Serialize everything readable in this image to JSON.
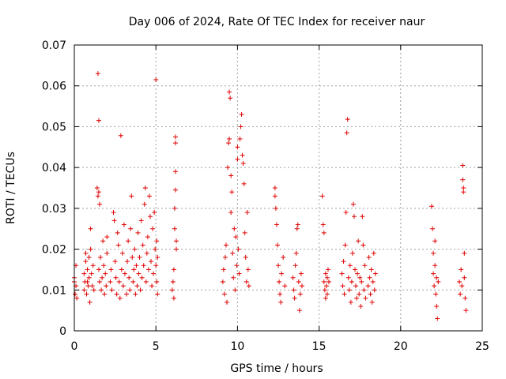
{
  "chart_data": {
    "type": "scatter",
    "title": "Day 006 of 2024, Rate Of TEC Index for receiver naur",
    "xlabel": "GPS time / hours",
    "ylabel": "ROTI / TECUs",
    "xlim": [
      0,
      25
    ],
    "ylim": [
      0,
      0.07
    ],
    "x_ticks": [
      0,
      5,
      10,
      15,
      20,
      25
    ],
    "x_tick_labels": [
      "0",
      "5",
      "10",
      "15",
      "20",
      "25"
    ],
    "y_ticks": [
      0,
      0.01,
      0.02,
      0.03,
      0.04,
      0.05,
      0.06,
      0.07
    ],
    "y_tick_labels": [
      "0",
      "0.01",
      "0.02",
      "0.03",
      "0.04",
      "0.05",
      "0.06",
      "0.07"
    ],
    "grid": true,
    "marker": "plus",
    "color": "#e00000",
    "series": [
      {
        "name": "ROTI",
        "points": [
          [
            0.0,
            0.012
          ],
          [
            0.0,
            0.013
          ],
          [
            0.05,
            0.009
          ],
          [
            0.1,
            0.011
          ],
          [
            0.1,
            0.016
          ],
          [
            0.15,
            0.008
          ],
          [
            0.6,
            0.01
          ],
          [
            0.6,
            0.014
          ],
          [
            0.65,
            0.012
          ],
          [
            0.7,
            0.017
          ],
          [
            0.7,
            0.019
          ],
          [
            0.75,
            0.009
          ],
          [
            0.8,
            0.012
          ],
          [
            0.8,
            0.015
          ],
          [
            0.85,
            0.011
          ],
          [
            0.9,
            0.013
          ],
          [
            0.9,
            0.018
          ],
          [
            0.95,
            0.007
          ],
          [
            1.0,
            0.025
          ],
          [
            1.0,
            0.02
          ],
          [
            1.05,
            0.014
          ],
          [
            1.1,
            0.011
          ],
          [
            1.15,
            0.016
          ],
          [
            1.2,
            0.01
          ],
          [
            1.45,
            0.063
          ],
          [
            1.5,
            0.0515
          ],
          [
            1.4,
            0.035
          ],
          [
            1.45,
            0.033
          ],
          [
            1.5,
            0.034
          ],
          [
            1.55,
            0.031
          ],
          [
            1.5,
            0.015
          ],
          [
            1.55,
            0.012
          ],
          [
            1.6,
            0.018
          ],
          [
            1.65,
            0.01
          ],
          [
            1.7,
            0.013
          ],
          [
            1.75,
            0.022
          ],
          [
            1.8,
            0.016
          ],
          [
            1.85,
            0.009
          ],
          [
            1.9,
            0.014
          ],
          [
            1.95,
            0.011
          ],
          [
            2.0,
            0.019
          ],
          [
            2.0,
            0.023
          ],
          [
            2.2,
            0.012
          ],
          [
            2.25,
            0.015
          ],
          [
            2.3,
            0.01
          ],
          [
            2.4,
            0.029
          ],
          [
            2.45,
            0.027
          ],
          [
            2.5,
            0.017
          ],
          [
            2.55,
            0.013
          ],
          [
            2.6,
            0.009
          ],
          [
            2.65,
            0.024
          ],
          [
            2.7,
            0.021
          ],
          [
            2.75,
            0.012
          ],
          [
            2.8,
            0.008
          ],
          [
            2.85,
            0.0478
          ],
          [
            2.9,
            0.015
          ],
          [
            2.95,
            0.019
          ],
          [
            3.0,
            0.011
          ],
          [
            3.05,
            0.026
          ],
          [
            3.1,
            0.014
          ],
          [
            3.2,
            0.009
          ],
          [
            3.25,
            0.017
          ],
          [
            3.3,
            0.022
          ],
          [
            3.35,
            0.013
          ],
          [
            3.4,
            0.01
          ],
          [
            3.45,
            0.025
          ],
          [
            3.5,
            0.033
          ],
          [
            3.55,
            0.018
          ],
          [
            3.6,
            0.012
          ],
          [
            3.65,
            0.015
          ],
          [
            3.7,
            0.02
          ],
          [
            3.75,
            0.009
          ],
          [
            3.8,
            0.016
          ],
          [
            3.85,
            0.011
          ],
          [
            3.9,
            0.024
          ],
          [
            3.95,
            0.014
          ],
          [
            4.0,
            0.018
          ],
          [
            4.05,
            0.01
          ],
          [
            4.1,
            0.027
          ],
          [
            4.15,
            0.013
          ],
          [
            4.2,
            0.021
          ],
          [
            4.25,
            0.016
          ],
          [
            4.3,
            0.031
          ],
          [
            4.35,
            0.035
          ],
          [
            4.4,
            0.012
          ],
          [
            4.45,
            0.019
          ],
          [
            4.5,
            0.023
          ],
          [
            4.55,
            0.015
          ],
          [
            4.6,
            0.033
          ],
          [
            4.65,
            0.028
          ],
          [
            4.7,
            0.017
          ],
          [
            4.75,
            0.011
          ],
          [
            4.8,
            0.025
          ],
          [
            4.85,
            0.014
          ],
          [
            4.9,
            0.029
          ],
          [
            4.95,
            0.02
          ],
          [
            5.0,
            0.0615
          ],
          [
            5.0,
            0.016
          ],
          [
            5.05,
            0.012
          ],
          [
            5.05,
            0.022
          ],
          [
            5.1,
            0.009
          ],
          [
            5.1,
            0.018
          ],
          [
            6.0,
            0.01
          ],
          [
            6.05,
            0.012
          ],
          [
            6.1,
            0.008
          ],
          [
            6.1,
            0.015
          ],
          [
            6.15,
            0.025
          ],
          [
            6.15,
            0.03
          ],
          [
            6.2,
            0.0475
          ],
          [
            6.2,
            0.046
          ],
          [
            6.2,
            0.039
          ],
          [
            6.2,
            0.0345
          ],
          [
            6.25,
            0.02
          ],
          [
            6.25,
            0.022
          ],
          [
            9.1,
            0.012
          ],
          [
            9.15,
            0.015
          ],
          [
            9.2,
            0.009
          ],
          [
            9.25,
            0.018
          ],
          [
            9.3,
            0.021
          ],
          [
            9.35,
            0.007
          ],
          [
            9.4,
            0.04
          ],
          [
            9.45,
            0.046
          ],
          [
            9.5,
            0.047
          ],
          [
            9.5,
            0.0585
          ],
          [
            9.55,
            0.057
          ],
          [
            9.6,
            0.038
          ],
          [
            9.6,
            0.029
          ],
          [
            9.65,
            0.034
          ],
          [
            9.7,
            0.019
          ],
          [
            9.75,
            0.013
          ],
          [
            9.8,
            0.025
          ],
          [
            9.85,
            0.01
          ],
          [
            9.9,
            0.023
          ],
          [
            9.95,
            0.016
          ],
          [
            10.0,
            0.045
          ],
          [
            10.0,
            0.042
          ],
          [
            10.05,
            0.02
          ],
          [
            10.1,
            0.014
          ],
          [
            10.15,
            0.047
          ],
          [
            10.2,
            0.05
          ],
          [
            10.25,
            0.053
          ],
          [
            10.3,
            0.043
          ],
          [
            10.35,
            0.041
          ],
          [
            10.4,
            0.036
          ],
          [
            10.45,
            0.024
          ],
          [
            10.5,
            0.018
          ],
          [
            10.55,
            0.012
          ],
          [
            10.6,
            0.029
          ],
          [
            10.65,
            0.015
          ],
          [
            10.7,
            0.011
          ],
          [
            12.3,
            0.035
          ],
          [
            12.3,
            0.033
          ],
          [
            12.35,
            0.03
          ],
          [
            12.4,
            0.026
          ],
          [
            12.45,
            0.021
          ],
          [
            12.5,
            0.016
          ],
          [
            12.55,
            0.012
          ],
          [
            12.6,
            0.009
          ],
          [
            12.65,
            0.007
          ],
          [
            12.7,
            0.014
          ],
          [
            12.8,
            0.018
          ],
          [
            12.9,
            0.011
          ],
          [
            13.4,
            0.013
          ],
          [
            13.45,
            0.01
          ],
          [
            13.5,
            0.008
          ],
          [
            13.55,
            0.016
          ],
          [
            13.6,
            0.019
          ],
          [
            13.65,
            0.025
          ],
          [
            13.7,
            0.026
          ],
          [
            13.75,
            0.012
          ],
          [
            13.8,
            0.005
          ],
          [
            13.85,
            0.009
          ],
          [
            13.9,
            0.014
          ],
          [
            13.95,
            0.011
          ],
          [
            15.2,
            0.033
          ],
          [
            15.25,
            0.026
          ],
          [
            15.3,
            0.024
          ],
          [
            15.3,
            0.012
          ],
          [
            15.35,
            0.01
          ],
          [
            15.4,
            0.008
          ],
          [
            15.4,
            0.014
          ],
          [
            15.45,
            0.011
          ],
          [
            15.5,
            0.013
          ],
          [
            15.5,
            0.009
          ],
          [
            15.55,
            0.015
          ],
          [
            15.6,
            0.012
          ],
          [
            16.4,
            0.014
          ],
          [
            16.45,
            0.011
          ],
          [
            16.5,
            0.017
          ],
          [
            16.55,
            0.009
          ],
          [
            16.6,
            0.021
          ],
          [
            16.65,
            0.029
          ],
          [
            16.7,
            0.0485
          ],
          [
            16.75,
            0.0518
          ],
          [
            16.8,
            0.013
          ],
          [
            16.85,
            0.01
          ],
          [
            16.9,
            0.016
          ],
          [
            16.95,
            0.007
          ],
          [
            17.0,
            0.012
          ],
          [
            17.05,
            0.019
          ],
          [
            17.1,
            0.031
          ],
          [
            17.15,
            0.028
          ],
          [
            17.2,
            0.015
          ],
          [
            17.25,
            0.011
          ],
          [
            17.3,
            0.008
          ],
          [
            17.35,
            0.014
          ],
          [
            17.4,
            0.022
          ],
          [
            17.45,
            0.009
          ],
          [
            17.5,
            0.013
          ],
          [
            17.55,
            0.006
          ],
          [
            17.6,
            0.012
          ],
          [
            17.65,
            0.028
          ],
          [
            17.7,
            0.021
          ],
          [
            17.75,
            0.01
          ],
          [
            17.8,
            0.016
          ],
          [
            17.85,
            0.008
          ],
          [
            18.0,
            0.011
          ],
          [
            18.05,
            0.018
          ],
          [
            18.1,
            0.013
          ],
          [
            18.15,
            0.009
          ],
          [
            18.2,
            0.015
          ],
          [
            18.25,
            0.007
          ],
          [
            18.3,
            0.012
          ],
          [
            18.35,
            0.019
          ],
          [
            18.4,
            0.01
          ],
          [
            18.45,
            0.014
          ],
          [
            21.9,
            0.0305
          ],
          [
            21.95,
            0.025
          ],
          [
            22.0,
            0.019
          ],
          [
            22.0,
            0.014
          ],
          [
            22.05,
            0.011
          ],
          [
            22.1,
            0.022
          ],
          [
            22.1,
            0.016
          ],
          [
            22.15,
            0.009
          ],
          [
            22.2,
            0.013
          ],
          [
            22.2,
            0.006
          ],
          [
            22.25,
            0.003
          ],
          [
            22.3,
            0.012
          ],
          [
            23.6,
            0.012
          ],
          [
            23.65,
            0.009
          ],
          [
            23.7,
            0.015
          ],
          [
            23.75,
            0.011
          ],
          [
            23.8,
            0.0405
          ],
          [
            23.8,
            0.037
          ],
          [
            23.85,
            0.035
          ],
          [
            23.85,
            0.034
          ],
          [
            23.9,
            0.019
          ],
          [
            23.9,
            0.013
          ],
          [
            23.95,
            0.008
          ],
          [
            24.0,
            0.005
          ]
        ]
      }
    ]
  }
}
